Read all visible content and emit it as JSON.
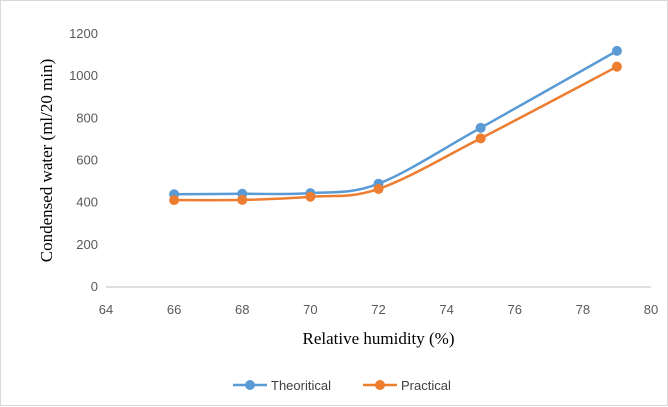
{
  "chart_data": {
    "type": "line",
    "xlabel": "Relative humidity (%)",
    "ylabel": "Condensed water (ml/20 min)",
    "xlim": [
      64,
      80
    ],
    "ylim": [
      0,
      1200
    ],
    "xticks": [
      64,
      66,
      68,
      70,
      72,
      74,
      76,
      78,
      80
    ],
    "yticks": [
      0,
      200,
      400,
      600,
      800,
      1000,
      1200
    ],
    "grid": false,
    "legend_position": "bottom",
    "series": [
      {
        "name": "Theoritical",
        "color": "#5b9bd5",
        "x": [
          66,
          68,
          70,
          72,
          75,
          79
        ],
        "y": [
          440,
          442,
          445,
          490,
          755,
          1120
        ]
      },
      {
        "name": "Practical",
        "color": "#ed7d31",
        "x": [
          66,
          68,
          70,
          72,
          75,
          79
        ],
        "y": [
          412,
          413,
          428,
          465,
          705,
          1045
        ]
      }
    ]
  }
}
